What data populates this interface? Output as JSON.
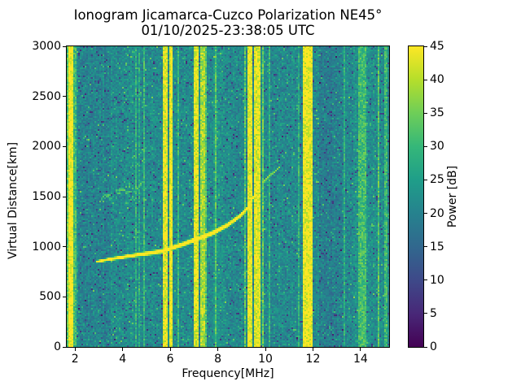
{
  "figure_kind": "ionogram-heatmap",
  "chart_data": {
    "type": "heatmap",
    "title": "Ionogram Jicamarca-Cuzco Polarization NE45°",
    "subtitle": "01/10/2025-23:38:05 UTC",
    "xlabel": "Frequency[MHz]",
    "ylabel": "Virtual Distance[km]",
    "xlim": [
      1.65,
      15.2
    ],
    "ylim": [
      0,
      3000
    ],
    "xticks": [
      2,
      4,
      6,
      8,
      10,
      12,
      14
    ],
    "yticks": [
      0,
      500,
      1000,
      1500,
      2000,
      2500,
      3000
    ],
    "grid": false,
    "colorbar": {
      "label": "Power [dB]",
      "min": 0,
      "max": 45,
      "ticks": [
        0,
        5,
        10,
        15,
        20,
        25,
        30,
        35,
        40,
        45
      ],
      "colormap": "viridis",
      "stops": [
        "#440154",
        "#482878",
        "#3e4989",
        "#31688e",
        "#26828e",
        "#1f9e89",
        "#35b779",
        "#6ece58",
        "#b5de2b",
        "#fde725"
      ]
    },
    "background_noise": {
      "mean_db": 21.5,
      "spread_db": 10,
      "column_jitter_db": 1.6,
      "dark_speckle_fraction": 0.05,
      "bright_speckle_fraction": 0.035
    },
    "background_regions": [
      {
        "f_start": 2.1,
        "f_end": 3.5,
        "offset_db": -1.5,
        "column_jitter_db": 0
      },
      {
        "f_start": 7.78,
        "f_end": 8.38,
        "offset_db": 1.2,
        "column_jitter_db": 1.0
      },
      {
        "f_start": 12.25,
        "f_end": 13.2,
        "offset_db": -2.2,
        "column_jitter_db": 0.5
      },
      {
        "f_start": 13.4,
        "f_end": 15.2,
        "offset_db": 0.5,
        "column_jitter_db": 1.8
      }
    ],
    "rfi_bands": [
      {
        "f_start": 1.65,
        "f_end": 1.71,
        "power_db": 33
      },
      {
        "f_start": 1.71,
        "f_end": 1.93,
        "power_db": 45
      },
      {
        "f_start": 1.93,
        "f_end": 2.03,
        "power_db": 31
      },
      {
        "f_start": 4.53,
        "f_end": 4.6,
        "power_db": 29
      },
      {
        "f_start": 4.66,
        "f_end": 4.72,
        "power_db": 27
      },
      {
        "f_start": 4.88,
        "f_end": 4.93,
        "power_db": 30
      },
      {
        "f_start": 5.66,
        "f_end": 5.86,
        "power_db": 43
      },
      {
        "f_start": 5.94,
        "f_end": 6.13,
        "power_db": 44
      },
      {
        "f_start": 6.33,
        "f_end": 6.4,
        "power_db": 30
      },
      {
        "f_start": 6.98,
        "f_end": 7.22,
        "power_db": 43
      },
      {
        "f_start": 7.27,
        "f_end": 7.48,
        "power_db": 39
      },
      {
        "f_start": 7.5,
        "f_end": 7.56,
        "power_db": 33
      },
      {
        "f_start": 7.9,
        "f_end": 7.96,
        "power_db": 32
      },
      {
        "f_start": 8.12,
        "f_end": 8.17,
        "power_db": 30
      },
      {
        "f_start": 9.1,
        "f_end": 9.2,
        "power_db": 33
      },
      {
        "f_start": 9.28,
        "f_end": 9.48,
        "power_db": 44
      },
      {
        "f_start": 9.52,
        "f_end": 9.78,
        "power_db": 43
      },
      {
        "f_start": 9.88,
        "f_end": 9.96,
        "power_db": 34
      },
      {
        "f_start": 10.12,
        "f_end": 10.18,
        "power_db": 29
      },
      {
        "f_start": 11.4,
        "f_end": 11.46,
        "power_db": 28
      },
      {
        "f_start": 11.54,
        "f_end": 11.96,
        "power_db": 44
      },
      {
        "f_start": 12.16,
        "f_end": 12.22,
        "power_db": 35
      },
      {
        "f_start": 13.3,
        "f_end": 13.36,
        "power_db": 28
      },
      {
        "f_start": 13.88,
        "f_end": 14.22,
        "power_db": 31
      },
      {
        "f_start": 14.72,
        "f_end": 14.78,
        "power_db": 33
      },
      {
        "f_start": 15.02,
        "f_end": 15.1,
        "power_db": 30
      }
    ],
    "echo_trace": {
      "name": "F-region oblique echo",
      "power_db": 46,
      "points_f_km_width": [
        [
          2.9,
          850,
          24
        ],
        [
          3.5,
          877,
          30
        ],
        [
          4.1,
          900,
          34
        ],
        [
          4.7,
          922,
          38
        ],
        [
          5.3,
          942,
          42
        ],
        [
          5.7,
          958,
          44
        ],
        [
          6.4,
          1013,
          46
        ],
        [
          7.05,
          1070,
          46
        ],
        [
          7.75,
          1133,
          48
        ],
        [
          8.4,
          1215,
          46
        ],
        [
          8.95,
          1310,
          42
        ],
        [
          9.2,
          1370,
          40
        ],
        [
          9.45,
          1470,
          36
        ],
        [
          9.7,
          1590,
          32
        ]
      ],
      "faint_segment": {
        "power_db": 37,
        "points_f_km_width": [
          [
            9.88,
            1635,
            24
          ],
          [
            10.2,
            1712,
            20
          ],
          [
            10.62,
            1800,
            16
          ]
        ]
      }
    },
    "diffuse_echo": {
      "f_start": 3.05,
      "f_end": 4.95,
      "d_start_km": 1470,
      "d_end_km": 1630,
      "thickness_km": 90,
      "power_db": 29,
      "density": 0.3
    }
  }
}
